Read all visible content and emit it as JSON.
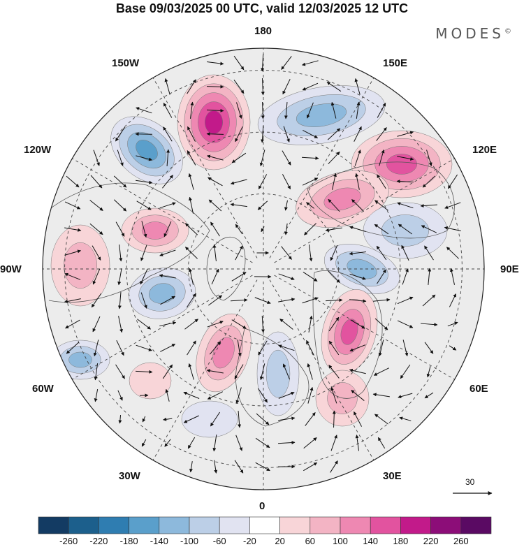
{
  "title": "Base 09/03/2025 00 UTC, valid 12/03/2025 12 UTC",
  "brand": "MODES",
  "brand_mark": "©",
  "longitude_labels": {
    "top": "180",
    "upper_left": "150W",
    "upper_right": "150E",
    "left_upper": "120W",
    "right_upper": "120E",
    "left": "90W",
    "right": "90E",
    "left_lower": "60W",
    "right_lower": "60E",
    "lower_left": "30W",
    "lower_right": "30E",
    "bottom": "0"
  },
  "reference_vector_label": "30",
  "colorbar": {
    "ticks": [
      "-260",
      "-220",
      "-180",
      "-140",
      "-100",
      "-60",
      "-20",
      "20",
      "60",
      "100",
      "140",
      "180",
      "220",
      "260"
    ],
    "colors": [
      "#133b63",
      "#1c5f8c",
      "#2f7db1",
      "#5a9fcb",
      "#8db9dc",
      "#bccfe7",
      "#e1e3f1",
      "#ffffff",
      "#f8d5d8",
      "#f3b4c4",
      "#ee88b2",
      "#e2539f",
      "#c21a8a",
      "#8c0d78",
      "#5a0a63"
    ]
  },
  "anomaly_centers": [
    {
      "sign": "positive",
      "levels": 5
    },
    {
      "sign": "negative",
      "levels": 4
    },
    {
      "sign": "negative",
      "levels": 3
    },
    {
      "sign": "negative",
      "levels": 3
    },
    {
      "sign": "positive",
      "levels": 3
    },
    {
      "sign": "positive",
      "levels": 2
    },
    {
      "sign": "negative",
      "levels": 3
    },
    {
      "sign": "positive",
      "levels": 4
    },
    {
      "sign": "positive",
      "levels": 3
    },
    {
      "sign": "negative",
      "levels": 2
    },
    {
      "sign": "positive",
      "levels": 4
    },
    {
      "sign": "negative",
      "levels": 3
    },
    {
      "sign": "positive",
      "levels": 2
    },
    {
      "sign": "positive",
      "levels": 3
    },
    {
      "sign": "negative",
      "levels": 2
    },
    {
      "sign": "negative",
      "levels": 1
    },
    {
      "sign": "positive",
      "levels": 1
    }
  ]
}
